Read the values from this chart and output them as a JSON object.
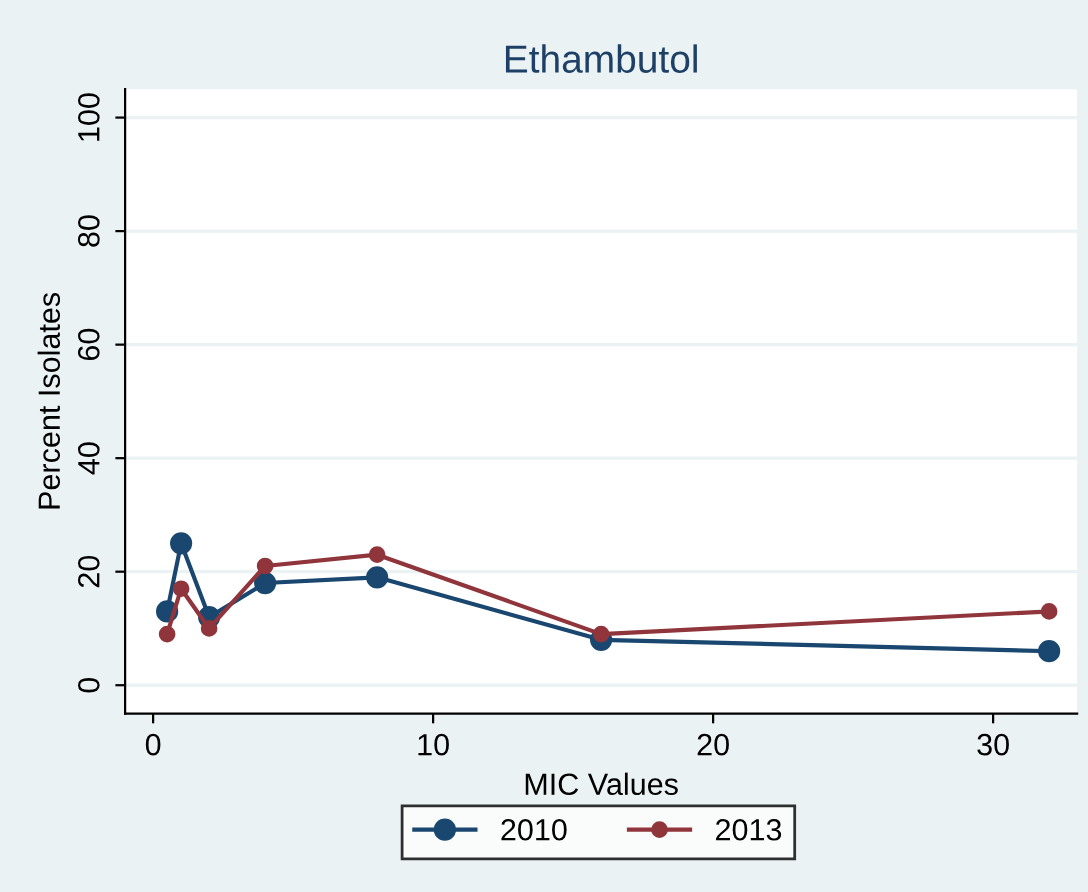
{
  "chart_data": {
    "type": "line",
    "title": "Ethambutol",
    "xlabel": "MIC Values",
    "ylabel": "Percent Isolates",
    "x": [
      0.5,
      1,
      2,
      4,
      8,
      16,
      32
    ],
    "series": [
      {
        "name": "2010",
        "color": "#1a476f",
        "values": [
          13,
          25,
          12,
          18,
          19,
          8,
          6
        ]
      },
      {
        "name": "2013",
        "color": "#90353b",
        "values": [
          9,
          17,
          10,
          21,
          23,
          9,
          13
        ]
      }
    ],
    "xlim": [
      -1,
      33
    ],
    "ylim": [
      -5,
      105
    ],
    "xticks": [
      0,
      10,
      20,
      30
    ],
    "yticks": [
      0,
      20,
      40,
      60,
      80,
      100
    ],
    "grid": "y",
    "legend": "bottom",
    "marker": "circle",
    "line_style": "solid"
  }
}
